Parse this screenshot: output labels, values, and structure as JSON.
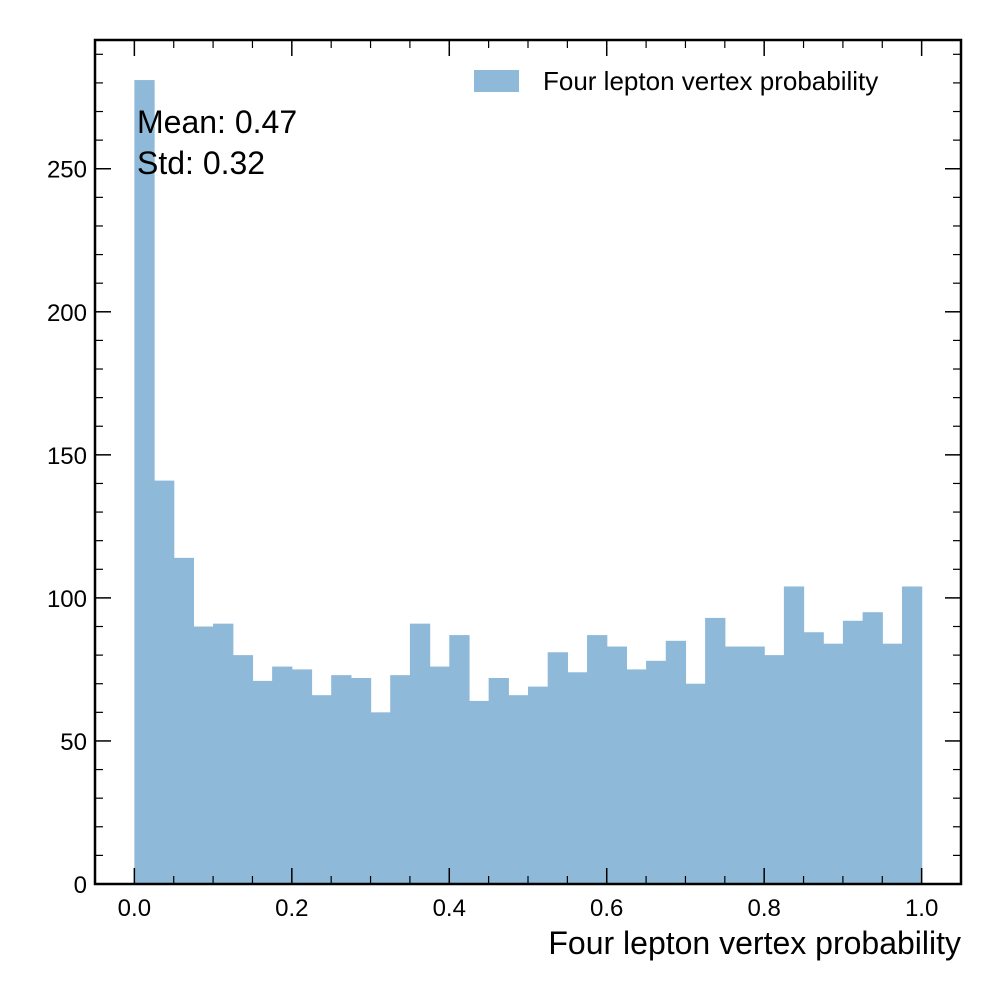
{
  "chart_data": {
    "type": "bar",
    "histogram": true,
    "bin_edges_range": [
      0.0,
      1.0
    ],
    "bin_count": 40,
    "values": [
      281,
      141,
      114,
      90,
      91,
      80,
      71,
      76,
      75,
      66,
      73,
      72,
      60,
      73,
      91,
      76,
      87,
      64,
      72,
      66,
      69,
      81,
      74,
      87,
      83,
      75,
      78,
      85,
      70,
      93,
      83,
      83,
      80,
      104,
      88,
      84,
      92,
      95,
      84,
      104
    ],
    "series": [
      {
        "name": "Four lepton vertex probability",
        "color": "#8fb9d9"
      }
    ],
    "xlabel": "Four lepton vertex probability",
    "ylabel": "",
    "xlim": [
      -0.05,
      1.05
    ],
    "ylim": [
      0,
      295
    ],
    "x_ticks": [
      "0.0",
      "0.2",
      "0.4",
      "0.6",
      "0.8",
      "1.0"
    ],
    "y_ticks": [
      "0",
      "50",
      "100",
      "150",
      "200",
      "250"
    ],
    "legend_position": "top-right",
    "annotations": {
      "mean": "Mean: 0.47",
      "std": "Std: 0.32"
    },
    "grid": false
  }
}
